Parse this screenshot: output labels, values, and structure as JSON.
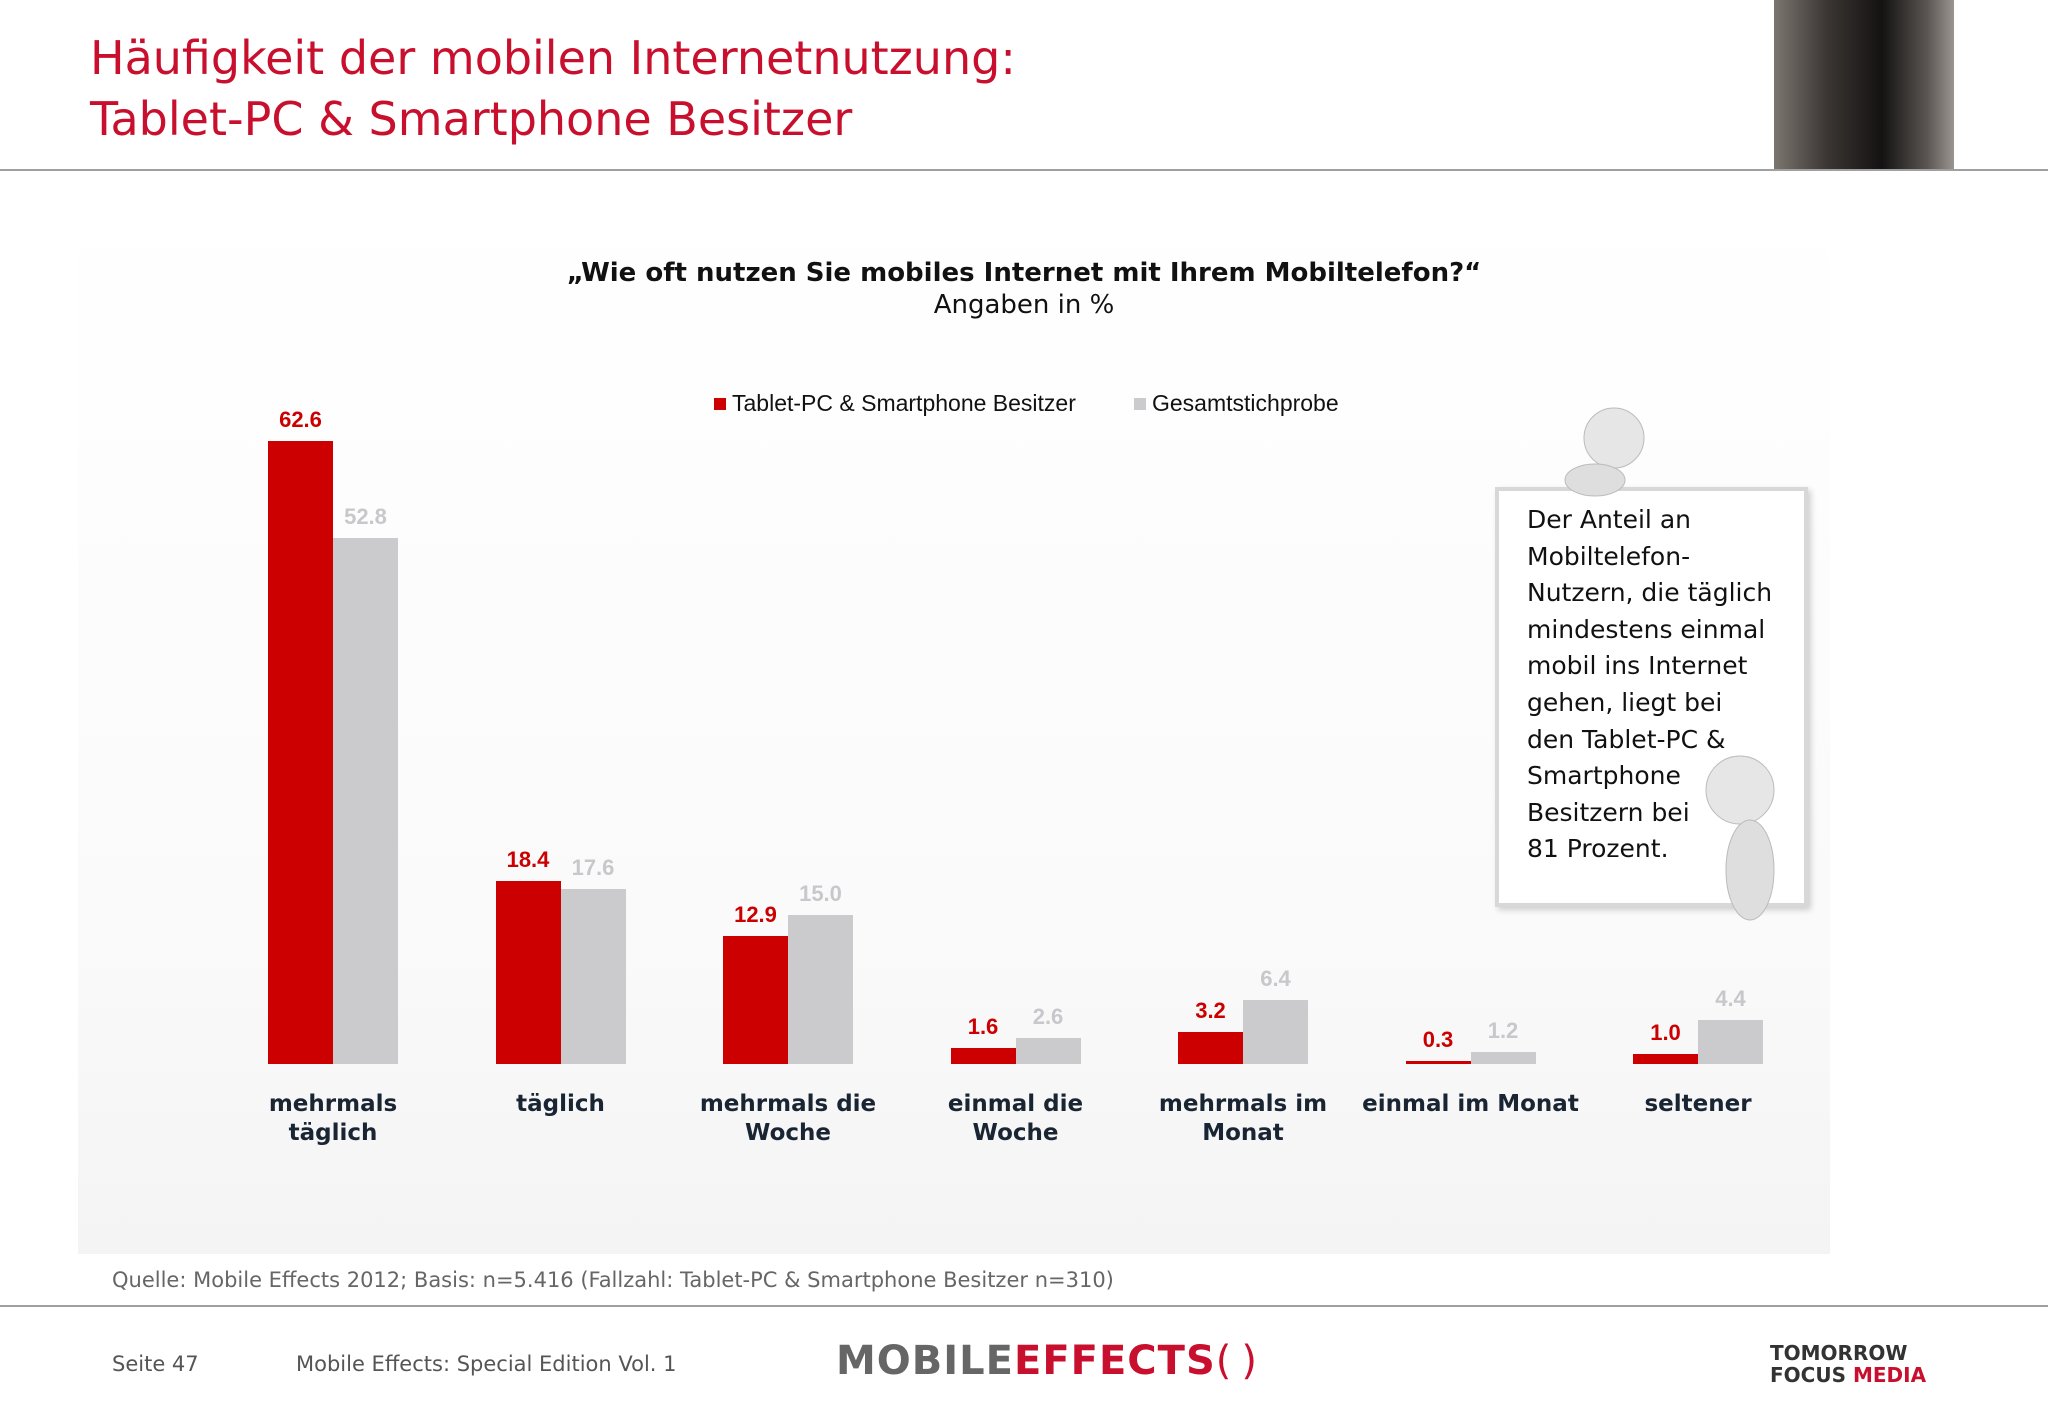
{
  "slide": {
    "title": [
      "Häufigkeit der mobilen Internetnutzung:",
      "Tablet-PC & Smartphone Besitzer"
    ],
    "callout": "Der Anteil an\nMobiltelefon-\nNutzern, die täglich\nmindestens einmal\nmobil ins Internet\ngehen, liegt bei\nden Tablet-PC &\nSmartphone\nBesitzern bei\n81 Prozent.",
    "source": "Quelle: Mobile Effects 2012; Basis: n=5.416 (Fallzahl: Tablet-PC & Smartphone Besitzer n=310)",
    "page": "Seite 47",
    "publication": "Mobile Effects: Special Edition Vol. 1",
    "logo": [
      "MOBILE",
      "EFFECTS"
    ],
    "logo2": [
      "TOMORROW",
      "FOCUS",
      "MEDIA"
    ]
  },
  "chart_data": {
    "type": "bar",
    "title": "„Wie oft nutzen Sie mobiles Internet mit Ihrem Mobiltelefon?“",
    "subtitle": "Angaben in %",
    "categories": [
      "mehrmals\ntäglich",
      "täglich",
      "mehrmals die\nWoche",
      "einmal die\nWoche",
      "mehrmals im\nMonat",
      "einmal im Monat",
      "seltener"
    ],
    "series": [
      {
        "name": "Tablet-PC & Smartphone Besitzer",
        "color": "#cc0000",
        "label_color": "#cc0000",
        "values": [
          62.6,
          18.4,
          12.9,
          1.6,
          3.2,
          0.3,
          1.0
        ],
        "value_labels": [
          "62.6",
          "18.4",
          "12.9",
          "1.6",
          "3.2",
          "0.3",
          "1.0"
        ]
      },
      {
        "name": "Gesamtstichprobe",
        "color": "#cbcbce",
        "label_color": "#c8c8cc",
        "values": [
          52.8,
          17.6,
          15.0,
          2.6,
          6.4,
          1.2,
          4.4
        ],
        "value_labels": [
          "52.8",
          "17.6",
          "15.0",
          "2.6",
          "6.4",
          "1.2",
          "4.4"
        ]
      }
    ],
    "ylim": [
      0,
      70
    ],
    "grid": false,
    "legend": "top"
  }
}
